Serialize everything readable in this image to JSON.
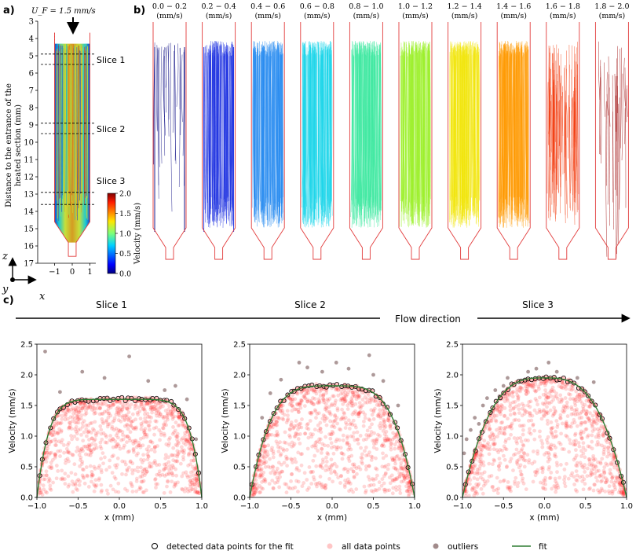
{
  "panel_a": {
    "label": "a)",
    "uf_label": "U_F = 1.5 mm/s",
    "ylabel_line1": "Distance to the entrance of the",
    "ylabel_line2": "heated section (mm)",
    "ymin": 3,
    "ymax": 17,
    "yticks": [
      3,
      4,
      5,
      6,
      7,
      8,
      9,
      10,
      11,
      12,
      13,
      14,
      15,
      16,
      17
    ],
    "xticks": [
      -1,
      0,
      1
    ],
    "slices": [
      {
        "label": "Slice 1",
        "z": [
          4.9,
          5.5
        ]
      },
      {
        "label": "Slice 2",
        "z": [
          8.9,
          9.5
        ]
      },
      {
        "label": "Slice 3",
        "z": [
          12.9,
          13.6
        ]
      }
    ],
    "colorbar": {
      "label": "Velocity (mm/s)",
      "ticks": [
        "0.0",
        "0.5",
        "1.0",
        "1.5",
        "2.0"
      ],
      "min": 0,
      "max": 2
    }
  },
  "axes_icon": {
    "z": "z",
    "y": "y",
    "x": "x"
  },
  "panel_b": {
    "label": "b)",
    "unit": "(mm/s)",
    "bins": [
      {
        "range": "0.0 − 0.2",
        "color": "#00007f",
        "density": 25
      },
      {
        "range": "0.2 − 0.4",
        "color": "#1b2fe0",
        "density": 120
      },
      {
        "range": "0.4 − 0.6",
        "color": "#2a8cf0",
        "density": 160
      },
      {
        "range": "0.6 − 0.8",
        "color": "#1fd6ea",
        "density": 170
      },
      {
        "range": "0.8 − 1.0",
        "color": "#3de8a0",
        "density": 170
      },
      {
        "range": "1.0 − 1.2",
        "color": "#9ef02e",
        "density": 170
      },
      {
        "range": "1.2 − 1.4",
        "color": "#f2e60c",
        "density": 165
      },
      {
        "range": "1.4 − 1.6",
        "color": "#ff9a00",
        "density": 160
      },
      {
        "range": "1.6 − 1.8",
        "color": "#f23a0c",
        "density": 85
      },
      {
        "range": "1.8 − 2.0",
        "color": "#9a0000",
        "density": 30
      }
    ]
  },
  "panel_c": {
    "label": "c)",
    "flow_label": "Flow direction",
    "slice_headers": [
      "Slice 1",
      "Slice 2",
      "Slice 3"
    ],
    "legend": [
      {
        "label": "detected data points for the fit"
      },
      {
        "label": "all data points"
      },
      {
        "label": "outliers"
      },
      {
        "label": "fit"
      }
    ]
  },
  "chart_data": [
    {
      "type": "scatter",
      "title": "Slice 1",
      "xlabel": "x (mm)",
      "ylabel": "Velocity (mm/s)",
      "xlim": [
        -1.0,
        1.0
      ],
      "ylim": [
        0.0,
        2.5
      ],
      "xticks": [
        "−1.0",
        "−0.5",
        "0.0",
        "0.5",
        "1.0"
      ],
      "yticks": [
        "0.0",
        "0.5",
        "1.0",
        "1.5",
        "2.0",
        "2.5"
      ],
      "fit": {
        "vmax": 1.6,
        "exponent": 7
      },
      "outliers": [
        [
          -0.9,
          2.38
        ],
        [
          -0.45,
          2.05
        ],
        [
          0.12,
          2.3
        ],
        [
          0.55,
          1.75
        ],
        [
          0.82,
          1.6
        ],
        [
          0.35,
          1.9
        ],
        [
          -0.72,
          1.72
        ],
        [
          0.68,
          1.82
        ],
        [
          -0.18,
          1.95
        ],
        [
          0.93,
          0.95
        ]
      ],
      "n_points": 1100
    },
    {
      "type": "scatter",
      "title": "Slice 2",
      "xlabel": "x (mm)",
      "ylabel": "Velocity (mm/s)",
      "xlim": [
        -1.0,
        1.0
      ],
      "ylim": [
        0.0,
        2.5
      ],
      "xticks": [
        "−1.0",
        "−0.5",
        "0.0",
        "0.5",
        "1.0"
      ],
      "yticks": [
        "0.0",
        "0.5",
        "1.0",
        "1.5",
        "2.0",
        "2.5"
      ],
      "fit": {
        "vmax": 1.82,
        "exponent": 4
      },
      "outliers": [
        [
          -0.4,
          2.2
        ],
        [
          -0.3,
          2.12
        ],
        [
          0.05,
          2.2
        ],
        [
          0.2,
          2.1
        ],
        [
          0.5,
          2.0
        ],
        [
          -0.62,
          1.92
        ],
        [
          0.62,
          1.9
        ],
        [
          -0.75,
          1.7
        ],
        [
          0.45,
          2.32
        ],
        [
          -0.12,
          2.05
        ],
        [
          0.8,
          1.5
        ],
        [
          -0.85,
          1.3
        ]
      ],
      "n_points": 1100
    },
    {
      "type": "scatter",
      "title": "Slice 3",
      "xlabel": "x (mm)",
      "ylabel": "Velocity (mm/s)",
      "xlim": [
        -1.0,
        1.0
      ],
      "ylim": [
        0.0,
        2.5
      ],
      "xticks": [
        "−1.0",
        "−0.5",
        "0.0",
        "0.5",
        "1.0"
      ],
      "yticks": [
        "0.0",
        "0.5",
        "1.0",
        "1.5",
        "2.0",
        "2.5"
      ],
      "fit": {
        "vmax": 1.95,
        "exponent": 3
      },
      "outliers": [
        [
          -0.98,
          0.72
        ],
        [
          -0.95,
          0.95
        ],
        [
          -0.9,
          1.1
        ],
        [
          -0.85,
          1.3
        ],
        [
          -0.75,
          1.5
        ],
        [
          -0.7,
          1.62
        ],
        [
          -0.6,
          1.75
        ],
        [
          -0.5,
          1.82
        ],
        [
          -0.45,
          1.95
        ],
        [
          -0.2,
          2.05
        ],
        [
          -0.1,
          2.1
        ],
        [
          0.05,
          2.2
        ],
        [
          0.15,
          2.05
        ],
        [
          0.4,
          1.95
        ],
        [
          0.6,
          1.88
        ],
        [
          -0.8,
          1.2
        ],
        [
          -0.65,
          1.4
        ],
        [
          -0.55,
          1.65
        ]
      ],
      "n_points": 1100
    }
  ]
}
